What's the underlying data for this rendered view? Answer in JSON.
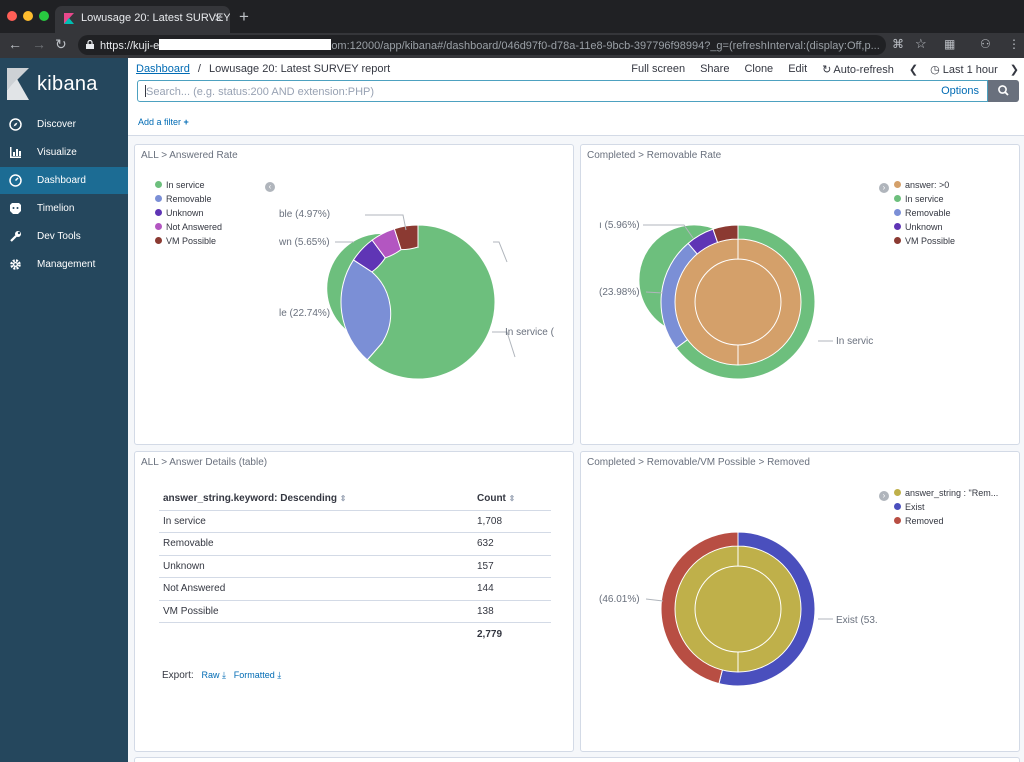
{
  "browser": {
    "tab_title": "Lowusage 20: Latest SURVEY ...",
    "url_prefix": "https://kuji-e",
    "url_suffix": "om:12000/app/kibana#/dashboard/046d97f0-d78a-11e8-9bcb-397796f98994?_g=(refreshInterval:(display:Off,p..."
  },
  "sidebar": {
    "brand": "kibana",
    "items": [
      {
        "label": "Discover",
        "icon": "compass-icon"
      },
      {
        "label": "Visualize",
        "icon": "bar-chart-icon"
      },
      {
        "label": "Dashboard",
        "icon": "dashboard-icon"
      },
      {
        "label": "Timelion",
        "icon": "timelion-icon"
      },
      {
        "label": "Dev Tools",
        "icon": "wrench-icon"
      },
      {
        "label": "Management",
        "icon": "gear-icon"
      }
    ],
    "active_item": "Dashboard"
  },
  "topnav": {
    "breadcrumb_root": "Dashboard",
    "breadcrumb_sep": "/",
    "breadcrumb_current": "Lowusage 20: Latest SURVEY report",
    "actions": {
      "fullscreen": "Full screen",
      "share": "Share",
      "clone": "Clone",
      "edit": "Edit",
      "autorefresh": "Auto-refresh",
      "timerange": "Last 1 hour"
    }
  },
  "search": {
    "placeholder": "Search... (e.g. status:200 AND extension:PHP)",
    "options_label": "Options"
  },
  "filters": {
    "add_label": "Add a filter"
  },
  "colors": {
    "in_service": "#6dbf7d",
    "removable": "#7b8fd6",
    "unknown": "#5f35b5",
    "not_answered": "#b356c1",
    "vm_possible": "#8b3a32",
    "answer_gt0": "#d4a06a",
    "answer_string": "#bfb04a",
    "exist": "#4a4fbd",
    "removed": "#b84e43"
  },
  "panels": {
    "answered_rate": {
      "title": "ALL > Answered Rate",
      "legend": [
        {
          "label": "In service",
          "color": "#6dbf7d"
        },
        {
          "label": "Removable",
          "color": "#7b8fd6"
        },
        {
          "label": "Unknown",
          "color": "#5f35b5"
        },
        {
          "label": "Not Answered",
          "color": "#b356c1"
        },
        {
          "label": "VM Possible",
          "color": "#8b3a32"
        }
      ],
      "labels": {
        "in_service": "In service (",
        "removable": "le (22.74%)",
        "unknown": "wn (5.65%)",
        "vm": "ble (4.97%)"
      }
    },
    "removable_rate": {
      "title": "Completed > Removable Rate",
      "legend": [
        {
          "label": "answer: >0",
          "color": "#d4a06a"
        },
        {
          "label": "In service",
          "color": "#6dbf7d"
        },
        {
          "label": "Removable",
          "color": "#7b8fd6"
        },
        {
          "label": "Unknown",
          "color": "#5f35b5"
        },
        {
          "label": "VM Possible",
          "color": "#8b3a32"
        }
      ],
      "labels": {
        "in_service": "In servic",
        "removable": "(23.98%)",
        "unknown": "ı (5.96%)"
      }
    },
    "answer_details": {
      "title": "ALL > Answer Details (table)",
      "col_answer": "answer_string.keyword: Descending",
      "col_count": "Count",
      "rows": [
        {
          "answer": "In service",
          "count": "1,708"
        },
        {
          "answer": "Removable",
          "count": "632"
        },
        {
          "answer": "Unknown",
          "count": "157"
        },
        {
          "answer": "Not Answered",
          "count": "144"
        },
        {
          "answer": "VM Possible",
          "count": "138"
        }
      ],
      "total": "2,779",
      "export_label": "Export:",
      "export_raw": "Raw",
      "export_formatted": "Formatted"
    },
    "removed": {
      "title": "Completed > Removable/VM Possible > Removed",
      "legend": [
        {
          "label": "answer_string : \"Rem...",
          "color": "#bfb04a"
        },
        {
          "label": "Exist",
          "color": "#4a4fbd"
        },
        {
          "label": "Removed",
          "color": "#b84e43"
        }
      ],
      "labels": {
        "exist": "Exist (53.",
        "removed": "(46.01%)"
      }
    }
  },
  "chart_data": [
    {
      "type": "pie",
      "title": "ALL > Answered Rate",
      "categories": [
        "In service",
        "Removable",
        "Unknown",
        "Not Answered",
        "VM Possible"
      ],
      "values": [
        61.46,
        22.74,
        5.65,
        5.18,
        4.97
      ]
    },
    {
      "type": "pie",
      "title": "Completed > Removable Rate",
      "series": [
        {
          "name": "answer: >0",
          "categories": [
            "answer: >0"
          ],
          "values": [
            100
          ]
        },
        {
          "name": "answer",
          "categories": [
            "In service",
            "Removable",
            "Unknown",
            "VM Possible"
          ],
          "values": [
            64.81,
            23.98,
            5.96,
            5.25
          ]
        }
      ]
    },
    {
      "type": "pie",
      "title": "Completed > Removable/VM Possible > Removed",
      "series": [
        {
          "name": "answer_string : \"Rem...",
          "categories": [
            "answer_string : \"Rem..."
          ],
          "values": [
            100
          ]
        },
        {
          "name": "Removed",
          "categories": [
            "Exist",
            "Removed"
          ],
          "values": [
            53.99,
            46.01
          ]
        }
      ]
    }
  ]
}
